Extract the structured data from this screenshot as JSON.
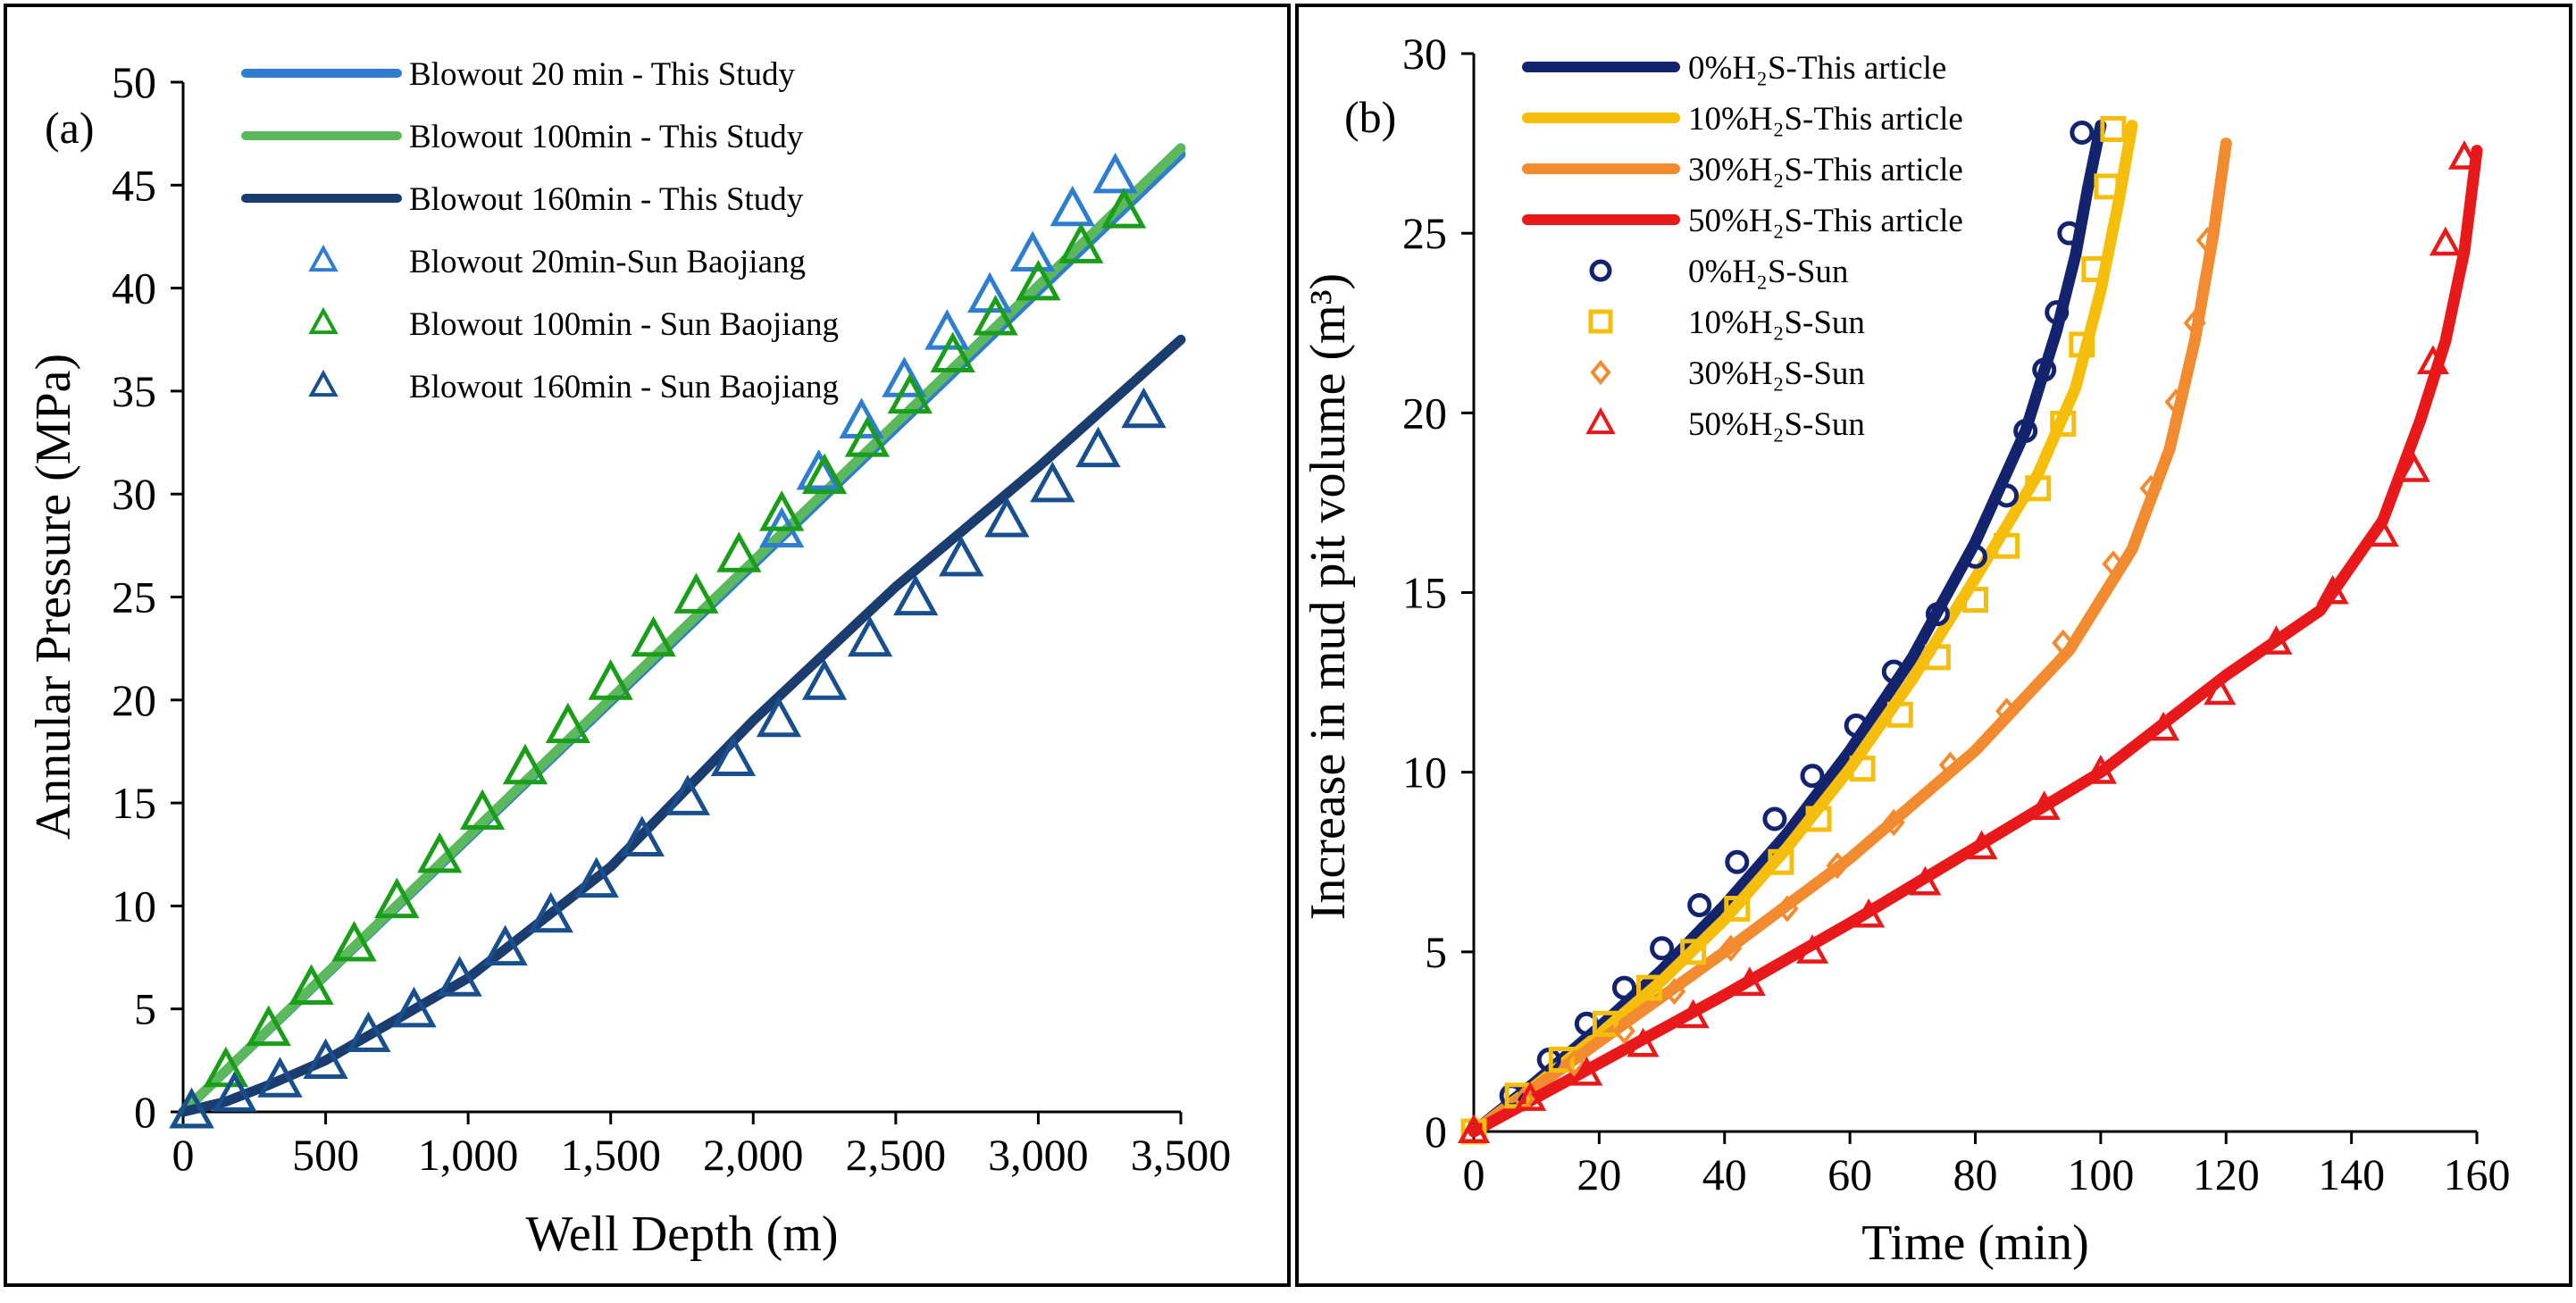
{
  "chart_data": [
    {
      "type": "line",
      "panel_label": "(a)",
      "xlabel": "Well Depth (m)",
      "ylabel": "Annular Pressure (MPa)",
      "xlim": [
        0,
        3500
      ],
      "ylim": [
        0,
        50
      ],
      "xticks": [
        "0",
        "500",
        "1,000",
        "1,500",
        "2,000",
        "2,500",
        "3,000",
        "3,500"
      ],
      "yticks": [
        "0",
        "5",
        "10",
        "15",
        "20",
        "25",
        "30",
        "35",
        "40",
        "45",
        "50"
      ],
      "legend_position": "top-left",
      "series": [
        {
          "name": "Blowout 20 min - This Study",
          "kind": "line",
          "color": "#2e7dd1",
          "x": [
            0,
            3500
          ],
          "y": [
            0,
            46.5
          ]
        },
        {
          "name": "Blowout 100min - This Study",
          "kind": "line",
          "color": "#5cb85c",
          "x": [
            0,
            3500
          ],
          "y": [
            0,
            46.8
          ]
        },
        {
          "name": "Blowout 160min - This Study",
          "kind": "line",
          "color": "#1a3c6e",
          "x": [
            0,
            150,
            300,
            500,
            1000,
            1500,
            2000,
            2500,
            3000,
            3500
          ],
          "y": [
            0,
            0.5,
            1.3,
            2.5,
            6.5,
            11.9,
            19.0,
            25.5,
            31.3,
            37.5
          ]
        },
        {
          "name": "Blowout 20min-Sun Baojiang",
          "kind": "marker",
          "color": "#2e7dd1",
          "x": [
            30,
            2100,
            2230,
            2380,
            2530,
            2680,
            2830,
            2980,
            3120,
            3270
          ],
          "y": [
            0,
            28.2,
            31.0,
            33.5,
            35.5,
            37.8,
            39.6,
            41.6,
            43.8,
            45.4
          ]
        },
        {
          "name": "Blowout 100min - Sun Baojiang",
          "kind": "marker",
          "color": "#1a9e1a",
          "x": [
            30,
            150,
            300,
            450,
            600,
            750,
            900,
            1050,
            1200,
            1350,
            1500,
            1650,
            1800,
            1950,
            2100,
            2250,
            2400,
            2550,
            2700,
            2850,
            3000,
            3150,
            3300
          ],
          "y": [
            0,
            2.0,
            4.0,
            6.0,
            8.1,
            10.2,
            12.4,
            14.5,
            16.7,
            18.7,
            20.8,
            22.9,
            25.0,
            27.0,
            29.0,
            30.8,
            32.6,
            34.7,
            36.7,
            38.5,
            40.2,
            42.0,
            43.7
          ]
        },
        {
          "name": "Blowout 160min - Sun Baojiang",
          "kind": "marker",
          "color": "#1a4f8e",
          "x": [
            30,
            180,
            340,
            500,
            650,
            810,
            970,
            1130,
            1290,
            1450,
            1610,
            1770,
            1930,
            2090,
            2250,
            2410,
            2570,
            2730,
            2890,
            3050,
            3210,
            3370
          ],
          "y": [
            0,
            0.8,
            1.5,
            2.4,
            3.7,
            4.9,
            6.4,
            7.9,
            9.5,
            11.2,
            13.2,
            15.2,
            17.1,
            19.0,
            20.8,
            22.9,
            24.9,
            26.8,
            28.7,
            30.4,
            32.1,
            34.0
          ]
        }
      ]
    },
    {
      "type": "line",
      "panel_label": "(b)",
      "xlabel": "Time (min)",
      "ylabel": "Increase in mud pit volume (m³)",
      "xlim": [
        0,
        160
      ],
      "ylim": [
        0,
        30
      ],
      "xticks": [
        "0",
        "20",
        "40",
        "60",
        "80",
        "100",
        "120",
        "140",
        "160"
      ],
      "yticks": [
        "0",
        "5",
        "10",
        "15",
        "20",
        "25",
        "30"
      ],
      "legend_position": "top-left",
      "series": [
        {
          "name": "0%H₂S-This article",
          "kind": "line",
          "color": "#14236e",
          "x": [
            0,
            10,
            20,
            30,
            40,
            50,
            60,
            70,
            80,
            88,
            93,
            96,
            98,
            100
          ],
          "y": [
            0,
            1.4,
            2.9,
            4.5,
            6.3,
            8.3,
            10.6,
            13.2,
            16.4,
            19.5,
            22.3,
            24.4,
            26.3,
            28.0
          ]
        },
        {
          "name": "10%H₂S-This article",
          "kind": "line",
          "color": "#f5be0b",
          "x": [
            0,
            10,
            20,
            30,
            40,
            50,
            60,
            70,
            80,
            90,
            96,
            100,
            103,
            105
          ],
          "y": [
            0,
            1.3,
            2.7,
            4.2,
            5.9,
            7.9,
            10.1,
            12.6,
            15.4,
            18.3,
            20.7,
            23.4,
            26.0,
            28.0
          ]
        },
        {
          "name": "30%H₂S-This article",
          "kind": "line",
          "color": "#f28a30",
          "x": [
            0,
            20,
            40,
            60,
            80,
            95,
            105,
            111,
            115,
            118,
            120
          ],
          "y": [
            0,
            2.5,
            5.0,
            7.6,
            10.6,
            13.4,
            16.2,
            19.0,
            22.0,
            25.0,
            27.5
          ]
        },
        {
          "name": "50%H₂S-This article",
          "kind": "line",
          "color": "#e8191a",
          "x": [
            0,
            20,
            40,
            60,
            80,
            100,
            120,
            135,
            145,
            151,
            155,
            158,
            160
          ],
          "y": [
            0,
            1.9,
            3.8,
            5.8,
            7.9,
            10.0,
            12.7,
            14.5,
            17.0,
            19.8,
            22.0,
            24.5,
            27.3
          ]
        },
        {
          "name": "0%H₂S-Sun",
          "kind": "marker",
          "color": "#14236e",
          "x": [
            6,
            12,
            18,
            24,
            30,
            36,
            42,
            48,
            54,
            61,
            67,
            74,
            80,
            85,
            88,
            91,
            93,
            95,
            97
          ],
          "y": [
            1.0,
            2.0,
            3.0,
            4.0,
            5.1,
            6.3,
            7.5,
            8.7,
            9.9,
            11.3,
            12.8,
            14.4,
            16.0,
            17.7,
            19.5,
            21.2,
            22.8,
            25.0,
            27.8
          ]
        },
        {
          "name": "10%H₂S-Sun",
          "kind": "marker",
          "color": "#f5be0b",
          "x": [
            0,
            7,
            14,
            21,
            28,
            35,
            42,
            49,
            55,
            62,
            68,
            74,
            80,
            85,
            90,
            94,
            97,
            99,
            101,
            102
          ],
          "y": [
            0,
            1.0,
            2.0,
            3.0,
            4.0,
            5.0,
            6.2,
            7.5,
            8.7,
            10.1,
            11.6,
            13.2,
            14.8,
            16.3,
            17.9,
            19.7,
            21.9,
            24.0,
            26.3,
            27.9
          ]
        },
        {
          "name": "30%H₂S-Sun",
          "kind": "marker",
          "color": "#f28a30",
          "x": [
            8,
            16,
            24,
            32,
            41,
            50,
            58,
            67,
            76,
            85,
            94,
            102,
            108,
            112,
            115,
            117
          ],
          "y": [
            0.9,
            1.9,
            2.8,
            3.9,
            5.1,
            6.2,
            7.4,
            8.6,
            10.2,
            11.7,
            13.6,
            15.8,
            17.9,
            20.3,
            22.5,
            24.8
          ]
        },
        {
          "name": "50%H₂S-Sun",
          "kind": "marker",
          "color": "#e8191a",
          "x": [
            0,
            9,
            18,
            27,
            35,
            44,
            54,
            63,
            72,
            81,
            91,
            100,
            110,
            119,
            128,
            137,
            145,
            150,
            153,
            155,
            158
          ],
          "y": [
            0,
            0.9,
            1.6,
            2.4,
            3.2,
            4.1,
            5.0,
            6.0,
            6.9,
            7.9,
            9.0,
            10.0,
            11.2,
            12.2,
            13.6,
            15.0,
            16.6,
            18.4,
            21.4,
            24.7,
            27.1
          ]
        }
      ]
    }
  ]
}
